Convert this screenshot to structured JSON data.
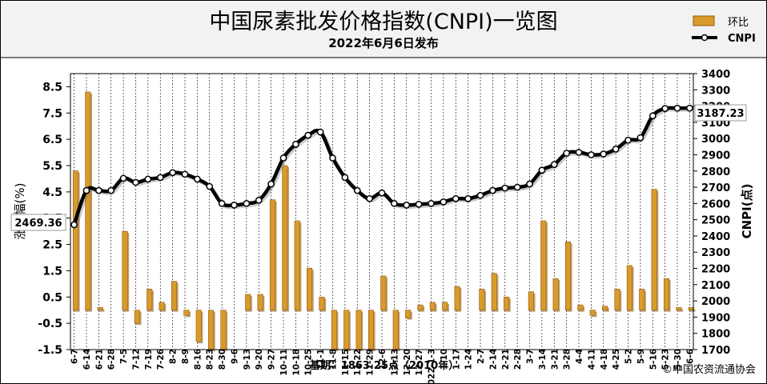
{
  "header": {
    "title": "中国尿素批发价格指数(CNPI)一览图",
    "subtitle": "2022年6月6日发布"
  },
  "legend": {
    "bar_label": "环比",
    "line_label": "CNPI"
  },
  "footer": {
    "base_note": "基期：1863.25点（2010年）",
    "copyright": "©中国农资流通协会"
  },
  "colors": {
    "bar_fill": "#d99a2b",
    "bar_shadow": "#8a5a10",
    "line": "#000000",
    "marker_fill": "#ffffff",
    "header_bg": "#f2f2f2",
    "grid": "#000000"
  },
  "chart_data": {
    "type": "bar+line",
    "categories": [
      "6-7",
      "6-14",
      "6-21",
      "6-28",
      "7-5",
      "7-12",
      "7-19",
      "7-26",
      "8-2",
      "8-9",
      "8-16",
      "8-23",
      "8-30",
      "9-6",
      "9-13",
      "9-20",
      "9-27",
      "10-11",
      "10-18",
      "10-25",
      "11-1",
      "11-8",
      "11-15",
      "11-22",
      "11-29",
      "12-6",
      "12-13",
      "12-20",
      "12-27",
      "2022-1-3",
      "1-10",
      "1-17",
      "1-24",
      "2-7",
      "2-14",
      "2-21",
      "2-28",
      "3-7",
      "3-14",
      "3-21",
      "3-28",
      "4-4",
      "4-11",
      "4-18",
      "4-25",
      "5-2",
      "5-9",
      "5-16",
      "5-23",
      "5-30",
      "6-6"
    ],
    "category_labels_display": [
      "6-7",
      "6-14",
      "6-21",
      "6-28",
      "7-5",
      "7-12",
      "7-19",
      "7-26",
      "8-2",
      "8-9",
      "8-16",
      "8-23",
      "8-30",
      "9-6",
      "9-13",
      "9-20",
      "9-27",
      "10-11",
      "10-18",
      "10-25",
      "11-1",
      "11-8",
      "11-15",
      "11-22",
      "11-29",
      "12-6",
      "12-13",
      "12-20",
      "12-27",
      "022-1-3",
      "1-10",
      "1-17",
      "1-24",
      "2-7",
      "2-14",
      "2-21",
      "2-28",
      "3-7",
      "3-14",
      "3-21",
      "3-28",
      "4-4",
      "4-11",
      "4-18",
      "4-25",
      "5-2",
      "5-9",
      "5-16",
      "5-23",
      "5-30",
      "6-6"
    ],
    "series": [
      {
        "name": "环比",
        "type": "bar",
        "axis": "left",
        "values": [
          5.3,
          8.3,
          0.1,
          0,
          3.0,
          -0.5,
          0.8,
          0.3,
          1.1,
          -0.2,
          -1.2,
          -1.5,
          -1.5,
          0,
          0.6,
          0.6,
          4.2,
          5.5,
          3.4,
          1.6,
          0.5,
          -1.5,
          -1.5,
          -1.5,
          -1.5,
          1.3,
          -1.5,
          -0.3,
          0.2,
          0.3,
          0.3,
          0.9,
          0,
          0.8,
          1.4,
          0.5,
          0,
          0.7,
          3.4,
          1.2,
          2.6,
          0.2,
          -0.2,
          0.15,
          0.8,
          1.7,
          0.8,
          4.6,
          1.2,
          0.1,
          0.1
        ]
      },
      {
        "name": "CNPI",
        "type": "line",
        "axis": "right",
        "values": [
          2469.36,
          2680,
          2680,
          2680,
          2755,
          2730,
          2750,
          2760,
          2790,
          2780,
          2750,
          2705,
          2600,
          2590,
          2600,
          2620,
          2720,
          2880,
          2965,
          3020,
          3040,
          2880,
          2760,
          2680,
          2630,
          2665,
          2600,
          2590,
          2595,
          2600,
          2610,
          2630,
          2630,
          2650,
          2680,
          2695,
          2700,
          2720,
          2805,
          2840,
          2910,
          2915,
          2900,
          2905,
          2935,
          2990,
          3005,
          3140,
          3185,
          3187,
          3187.23
        ]
      }
    ],
    "left_axis": {
      "label": "涨跌幅(%)",
      "ticks": [
        8.5,
        7.5,
        6.5,
        5.5,
        4.5,
        3.5,
        2.5,
        1.5,
        0.5,
        -0.5,
        -1.5
      ],
      "range": [
        -1.5,
        9.0
      ]
    },
    "right_axis": {
      "label": "CNPI(点)",
      "ticks": [
        3400,
        3300,
        3200,
        3100,
        3000,
        2900,
        2800,
        2700,
        2600,
        2500,
        2400,
        2300,
        2200,
        2100,
        2000,
        1900,
        1800,
        1700
      ],
      "range": [
        1700,
        3400
      ]
    },
    "annotations": {
      "start_value": "2469.36",
      "end_value": "3187.23"
    },
    "grid": "vertical dashed",
    "legend_position": "top-right"
  }
}
